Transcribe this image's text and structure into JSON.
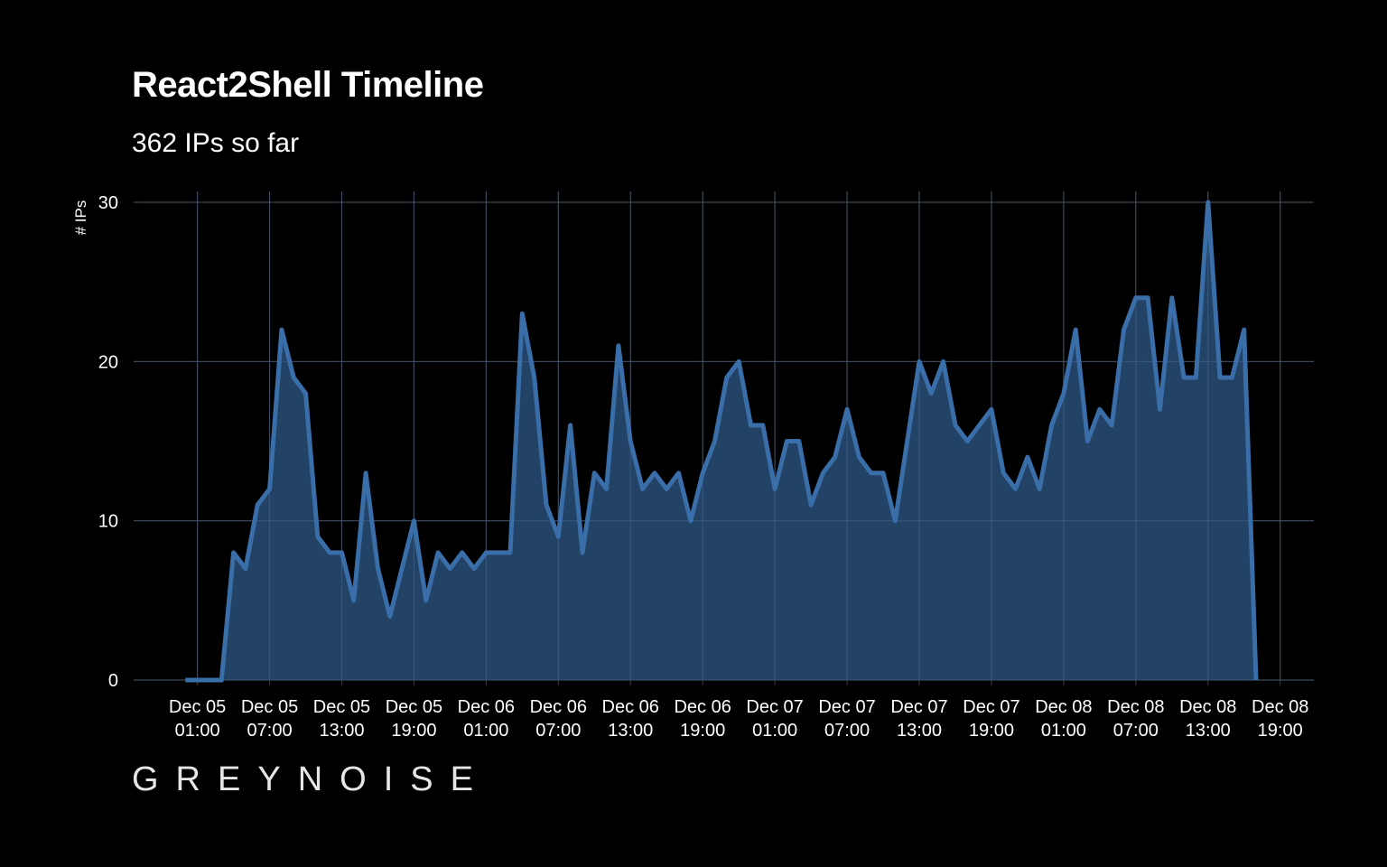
{
  "chart_data": {
    "type": "area",
    "title": "React2Shell Timeline",
    "subtitle": "362 IPs so far",
    "xlabel": "",
    "ylabel": "# IPs",
    "ylim": [
      0,
      30
    ],
    "yticks": [
      0,
      10,
      20,
      30
    ],
    "x_start": "Dec 05 00:00",
    "x_interval_hours": 1,
    "xlim_hours": [
      -4.3,
      93.8
    ],
    "xtick_hours": [
      1,
      7,
      13,
      19,
      25,
      31,
      37,
      43,
      49,
      55,
      61,
      67,
      73,
      79,
      85,
      91
    ],
    "xtick_labels": [
      [
        "Dec 05",
        "01:00"
      ],
      [
        "Dec 05",
        "07:00"
      ],
      [
        "Dec 05",
        "13:00"
      ],
      [
        "Dec 05",
        "19:00"
      ],
      [
        "Dec 06",
        "01:00"
      ],
      [
        "Dec 06",
        "07:00"
      ],
      [
        "Dec 06",
        "13:00"
      ],
      [
        "Dec 06",
        "19:00"
      ],
      [
        "Dec 07",
        "01:00"
      ],
      [
        "Dec 07",
        "07:00"
      ],
      [
        "Dec 07",
        "13:00"
      ],
      [
        "Dec 07",
        "19:00"
      ],
      [
        "Dec 08",
        "01:00"
      ],
      [
        "Dec 08",
        "07:00"
      ],
      [
        "Dec 08",
        "13:00"
      ],
      [
        "Dec 08",
        "19:00"
      ]
    ],
    "values": [
      0,
      0,
      0,
      0,
      8,
      7,
      11,
      12,
      22,
      19,
      18,
      9,
      8,
      8,
      5,
      13,
      7,
      4,
      7,
      10,
      5,
      8,
      7,
      8,
      7,
      8,
      8,
      8,
      23,
      19,
      11,
      9,
      16,
      8,
      13,
      12,
      21,
      15,
      12,
      13,
      12,
      13,
      10,
      13,
      15,
      19,
      20,
      16,
      16,
      12,
      15,
      15,
      11,
      13,
      14,
      17,
      14,
      13,
      13,
      10,
      15,
      20,
      18,
      20,
      16,
      15,
      16,
      17,
      13,
      12,
      14,
      12,
      16,
      18,
      22,
      15,
      17,
      16,
      22,
      24,
      24,
      17,
      24,
      19,
      19,
      30,
      19,
      19,
      22,
      0
    ],
    "grid": true,
    "colors": {
      "line": "#3a6ea8",
      "fill": "#24466b",
      "grid": "#333333",
      "background": "#000000"
    }
  },
  "logo_text": "GREYNOISE"
}
